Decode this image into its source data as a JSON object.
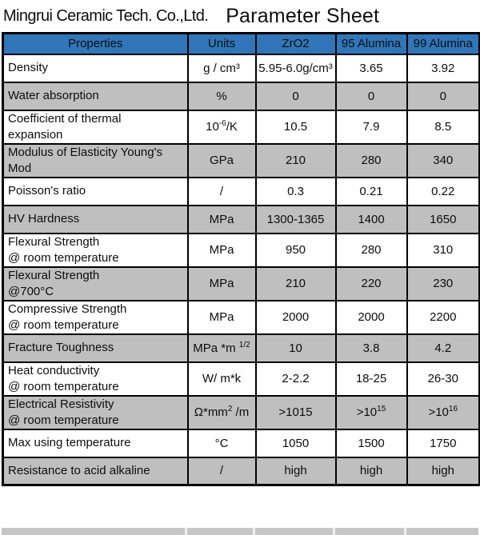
{
  "header": {
    "company": "Mingrui Ceramic Tech. Co.,Ltd.",
    "title": "Parameter Sheet"
  },
  "colors": {
    "header_bg": "#3076b9",
    "alt_row_bg": "#bfbfbf",
    "border": "#000000",
    "strip_bg": "#c6c6c6"
  },
  "table": {
    "columns": [
      "Properties",
      "Units",
      "ZrO2",
      "95 Alumina",
      "99  Alumina"
    ],
    "rows": [
      {
        "property": [
          "Density"
        ],
        "unit": "g / cm³",
        "values": [
          "5.95-6.0g/cm³",
          "3.65",
          "3.92"
        ]
      },
      {
        "property": [
          "Water absorption"
        ],
        "unit": "%",
        "values": [
          "0",
          "0",
          "0"
        ]
      },
      {
        "property": [
          "Coefficient of thermal",
          "expansion"
        ],
        "unit": [
          {
            "t": "10"
          },
          {
            "t": "-6",
            "sup": true
          },
          {
            "t": "/K"
          }
        ],
        "values": [
          "10.5",
          "7.9",
          "8.5"
        ]
      },
      {
        "property": [
          "Modulus of Elasticity Young's",
          "Mod"
        ],
        "unit": "GPa",
        "values": [
          "210",
          "280",
          "340"
        ]
      },
      {
        "property": [
          "Poisson's ratio"
        ],
        "unit": "/",
        "values": [
          "0.3",
          "0.21",
          "0.22"
        ]
      },
      {
        "property": [
          "HV Hardness"
        ],
        "unit": "MPa",
        "values": [
          "1300-1365",
          "1400",
          "1650"
        ]
      },
      {
        "property": [
          "Flexural Strength",
          "@ room temperature"
        ],
        "unit": "MPa",
        "values": [
          "950",
          "280",
          "310"
        ]
      },
      {
        "property": [
          "Flexural Strength",
          "@700°C"
        ],
        "unit": "MPa",
        "values": [
          "210",
          "220",
          "230"
        ]
      },
      {
        "property": [
          "Compressive Strength",
          "@ room temperature"
        ],
        "unit": "MPa",
        "values": [
          "2000",
          "2000",
          "2200"
        ]
      },
      {
        "property": [
          "Fracture Toughness"
        ],
        "unit": [
          {
            "t": "MPa *m "
          },
          {
            "t": "1/2",
            "sup": true
          }
        ],
        "values": [
          "10",
          "3.8",
          "4.2"
        ]
      },
      {
        "property": [
          "Heat conductivity",
          "@ room temperature"
        ],
        "unit": "W/ m*k",
        "values": [
          "2-2.2",
          "18-25",
          "26-30"
        ]
      },
      {
        "property": [
          "Electrical Resistivity",
          "@ room temperature"
        ],
        "unit": [
          {
            "t": "Ω*mm"
          },
          {
            "t": "2",
            "sup": true
          },
          {
            "t": " /m"
          }
        ],
        "values": [
          ">1015",
          [
            {
              "t": ">10"
            },
            {
              "t": "15",
              "sup": true
            }
          ],
          [
            {
              "t": ">10"
            },
            {
              "t": "16",
              "sup": true
            }
          ]
        ]
      },
      {
        "property": [
          "Max using temperature"
        ],
        "unit": "°C",
        "values": [
          "1050",
          "1500",
          "1750"
        ]
      },
      {
        "property": [
          "Resistance to acid alkaline"
        ],
        "unit": "/",
        "values": [
          "high",
          "high",
          "high"
        ]
      }
    ]
  }
}
